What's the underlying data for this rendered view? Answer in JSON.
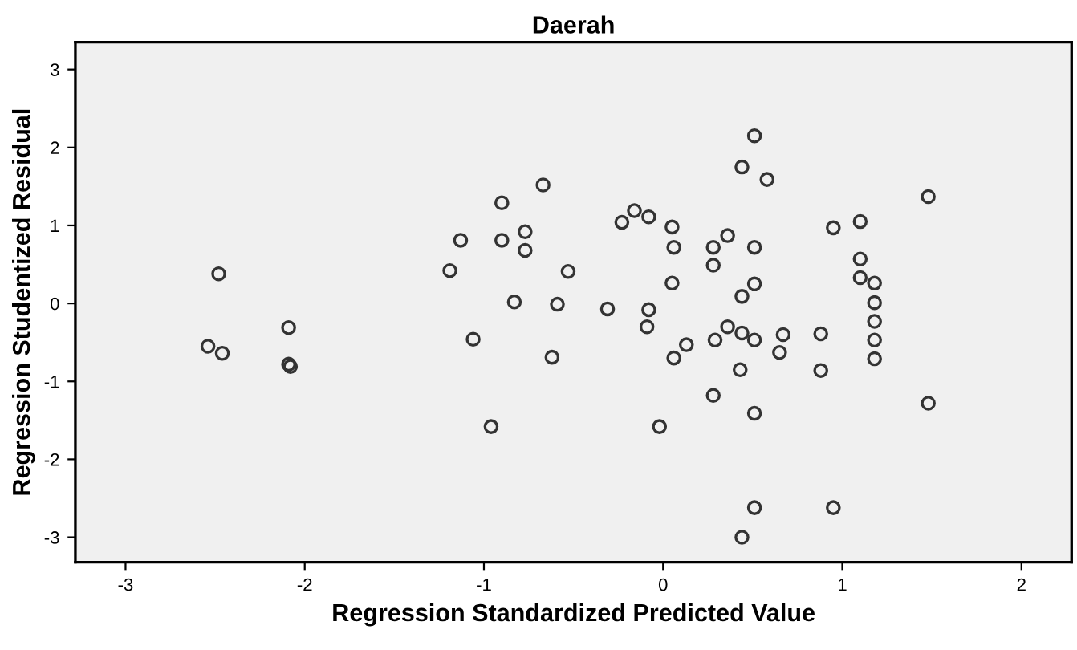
{
  "chart_data": {
    "type": "scatter",
    "title": "Daerah",
    "xlabel": "Regression Standardized Predicted Value",
    "ylabel": "Regression Studentized Residual",
    "x": [
      -2.54,
      -2.46,
      -2.48,
      -2.09,
      -2.09,
      -2.08,
      -1.19,
      -1.13,
      -1.06,
      -0.96,
      -0.9,
      -0.9,
      -0.83,
      -0.77,
      -0.77,
      -0.67,
      -0.62,
      -0.59,
      -0.53,
      0.51,
      0.44,
      0.58,
      1.48,
      -0.23,
      -0.16,
      -0.08,
      0.05,
      0.06,
      0.28,
      0.36,
      0.51,
      0.28,
      0.95,
      1.1,
      1.1,
      1.1,
      1.18,
      1.18,
      1.18,
      1.18,
      1.18,
      -0.31,
      -0.08,
      -0.09,
      0.05,
      0.51,
      0.44,
      0.13,
      0.06,
      0.29,
      0.36,
      0.44,
      0.51,
      0.67,
      0.65,
      0.88,
      0.88,
      0.43,
      0.28,
      0.51,
      -0.02,
      1.48,
      0.51,
      0.95,
      0.44
    ],
    "values": [
      -0.55,
      -0.64,
      0.38,
      -0.31,
      -0.78,
      -0.81,
      0.42,
      0.81,
      -0.46,
      -1.58,
      1.29,
      0.81,
      0.02,
      0.92,
      0.68,
      1.52,
      -0.69,
      -0.01,
      0.41,
      2.15,
      1.75,
      1.59,
      1.37,
      1.04,
      1.19,
      1.11,
      0.98,
      0.72,
      0.72,
      0.87,
      0.72,
      0.49,
      0.97,
      1.05,
      0.57,
      0.33,
      0.26,
      0.01,
      -0.23,
      -0.47,
      -0.71,
      -0.07,
      -0.08,
      -0.3,
      0.26,
      0.25,
      0.09,
      -0.53,
      -0.7,
      -0.47,
      -0.3,
      -0.38,
      -0.47,
      -0.4,
      -0.63,
      -0.39,
      -0.86,
      -0.85,
      -1.18,
      -1.41,
      -1.58,
      -1.28,
      -2.62,
      -2.62,
      -3.0
    ],
    "color": "#333333",
    "marker": "circle",
    "grid": false,
    "xlim": [
      -3.28,
      2.28
    ],
    "ylim": [
      -3.32,
      3.35
    ],
    "xticks": [
      -3,
      -2,
      -1,
      0,
      1,
      2
    ],
    "yticks": [
      -3,
      -2,
      -1,
      0,
      1,
      2,
      3
    ]
  }
}
